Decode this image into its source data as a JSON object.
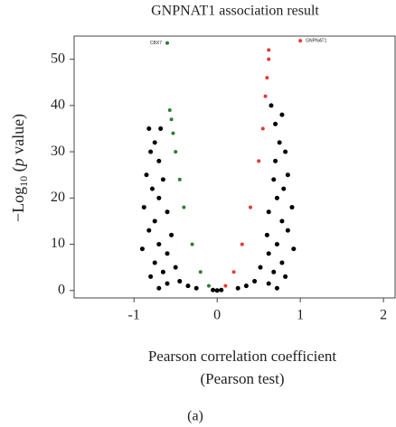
{
  "chart_data": {
    "type": "scatter",
    "title": "GNPNAT1 association result",
    "x_label": [
      "Pearson correlation coefficient",
      "(Pearson test)"
    ],
    "y_label": [
      "−Log",
      "10",
      " (",
      "p",
      " value)"
    ],
    "caption": "(a)",
    "xlim": [
      -1.72,
      2.14
    ],
    "ylim": [
      -1.6,
      55
    ],
    "xticks": [
      -1,
      0,
      1,
      2
    ],
    "yticks": [
      0,
      10,
      20,
      30,
      40,
      50
    ],
    "series": [
      {
        "color": "#000000",
        "x": [
          -0.75,
          -0.8,
          -0.7,
          -0.85,
          -0.65,
          -0.78,
          -0.7,
          -0.88,
          -0.6,
          -0.75,
          -0.82,
          -0.55,
          -0.7,
          -0.9,
          -0.6,
          -0.75,
          -0.5,
          -0.65,
          -0.8,
          -0.45,
          -0.6,
          -0.35,
          -0.7,
          -0.25,
          -0.68,
          -0.82,
          0.75,
          0.82,
          0.7,
          0.85,
          0.68,
          0.8,
          0.72,
          0.9,
          0.62,
          0.78,
          0.85,
          0.6,
          0.72,
          0.92,
          0.62,
          0.78,
          0.52,
          0.68,
          0.82,
          0.45,
          0.62,
          0.35,
          0.72,
          0.25,
          0.7,
          0.78,
          0.65,
          0.0,
          0.05,
          -0.05
        ],
        "y": [
          32,
          30,
          28,
          25,
          24,
          22,
          20,
          18,
          17,
          15,
          13,
          12,
          10,
          9,
          8,
          6,
          5,
          4,
          3,
          2,
          1.5,
          1,
          0.5,
          0.5,
          35,
          35,
          32,
          30,
          28,
          25,
          24,
          22,
          20,
          18,
          17,
          15,
          13,
          12,
          10,
          9,
          8,
          6,
          5,
          4,
          3,
          2,
          1.5,
          1,
          0.5,
          0.5,
          36,
          38,
          40,
          0,
          0.1,
          0.1
        ]
      },
      {
        "color": "#2e7d32",
        "x": [
          -0.1,
          -0.2,
          -0.3,
          -0.4,
          -0.45,
          -0.5,
          -0.53,
          -0.55,
          -0.57,
          -0.6
        ],
        "y": [
          1,
          4,
          10,
          18,
          24,
          30,
          34,
          37,
          39,
          53.5
        ]
      },
      {
        "color": "#e53935",
        "x": [
          0.1,
          0.2,
          0.3,
          0.4,
          0.5,
          0.55,
          0.58,
          0.6,
          0.62,
          0.62,
          1
        ],
        "y": [
          1,
          4,
          10,
          18,
          28,
          35,
          42,
          46,
          50,
          52,
          54
        ]
      }
    ],
    "annotations": [
      {
        "text": "CBX7",
        "x": -0.6,
        "y": 53.5
      },
      {
        "text": "GNPNAT1",
        "x": 1,
        "y": 54
      }
    ]
  }
}
